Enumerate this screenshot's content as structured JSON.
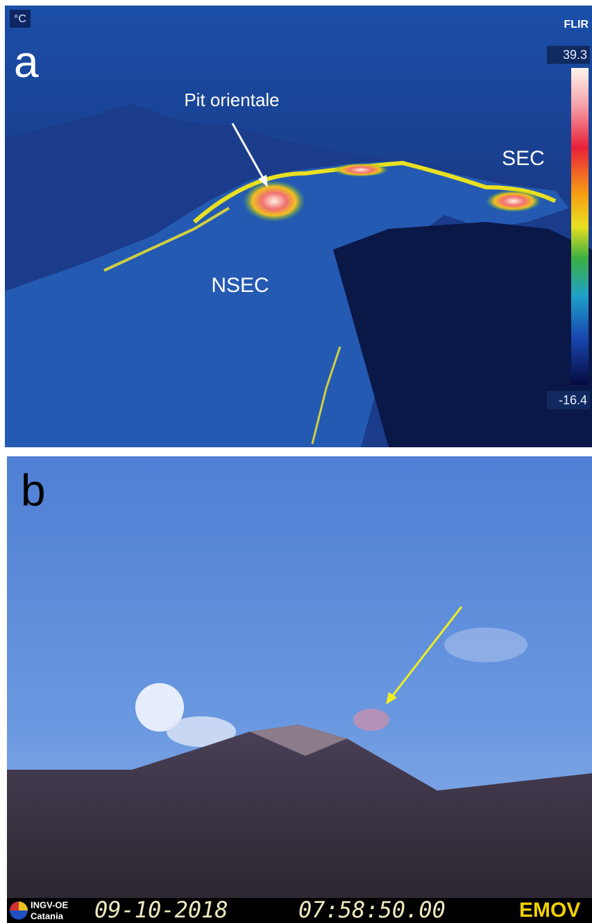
{
  "panel_a": {
    "label": "a",
    "unit": "°C",
    "brand": "FLIR",
    "scale_max": "39.3",
    "scale_min": "-16.4",
    "annotations": [
      "Pit orientale",
      "SEC",
      "NSEC"
    ]
  },
  "panel_b": {
    "label": "b",
    "logo_line1": "INGV-OE",
    "logo_line2": "Catania",
    "date": "09-10-2018",
    "time": "07:58:50.00",
    "camera": "EMOV"
  }
}
